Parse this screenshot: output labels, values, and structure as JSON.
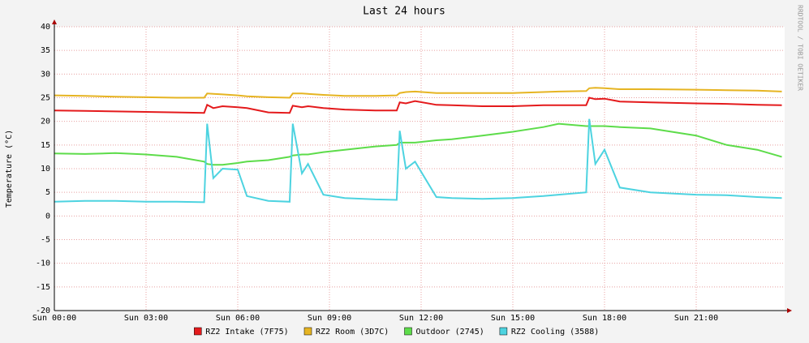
{
  "chart_data": {
    "type": "line",
    "title": "Last 24 hours",
    "y_label": "Temperature (°C)",
    "side_label": "RRDTOOL / TOBI OETIKER",
    "x": [
      0,
      1,
      2,
      3,
      4,
      4.9,
      5.0,
      5.2,
      5.5,
      6,
      6.3,
      7,
      7.7,
      7.8,
      8.1,
      8.3,
      8.8,
      9.5,
      10.5,
      11.2,
      11.3,
      11.5,
      11.8,
      12.5,
      13,
      14,
      15,
      16,
      16.5,
      17.4,
      17.5,
      17.7,
      18,
      18.5,
      19.5,
      21,
      22,
      23,
      23.8
    ],
    "xlim": [
      0,
      24
    ],
    "xticks": [
      {
        "value": 0,
        "label": "Sun 00:00"
      },
      {
        "value": 3,
        "label": "Sun 03:00"
      },
      {
        "value": 6,
        "label": "Sun 06:00"
      },
      {
        "value": 9,
        "label": "Sun 09:00"
      },
      {
        "value": 12,
        "label": "Sun 12:00"
      },
      {
        "value": 15,
        "label": "Sun 15:00"
      },
      {
        "value": 18,
        "label": "Sun 18:00"
      },
      {
        "value": 21,
        "label": "Sun 21:00"
      }
    ],
    "ylim": [
      -20,
      40
    ],
    "yticks": [
      40,
      35,
      30,
      25,
      20,
      15,
      10,
      5,
      0,
      -5,
      -10,
      -15,
      -20
    ],
    "grid": true,
    "legend": "bottom",
    "series": [
      {
        "name": "RZ2 Intake (7F75)",
        "color": "#e41a1c",
        "values": [
          22.3,
          22.2,
          22.1,
          22,
          21.9,
          21.8,
          23.5,
          22.8,
          23.2,
          23,
          22.8,
          21.9,
          21.8,
          23.3,
          23,
          23.2,
          22.8,
          22.5,
          22.3,
          22.3,
          24,
          23.8,
          24.3,
          23.5,
          23.4,
          23.2,
          23.2,
          23.4,
          23.4,
          23.4,
          25,
          24.7,
          24.8,
          24.2,
          24,
          23.8,
          23.7,
          23.5,
          23.4
        ]
      },
      {
        "name": "RZ2 Room (3D7C)",
        "color": "#e6b422",
        "values": [
          25.5,
          25.4,
          25.2,
          25.1,
          25,
          25,
          25.9,
          25.8,
          25.7,
          25.5,
          25.3,
          25.1,
          25,
          25.9,
          25.9,
          25.8,
          25.6,
          25.4,
          25.4,
          25.5,
          26,
          26.2,
          26.3,
          26,
          26,
          26,
          26,
          26.2,
          26.3,
          26.4,
          27,
          27.1,
          27,
          26.8,
          26.8,
          26.7,
          26.6,
          26.5,
          26.3
        ]
      },
      {
        "name": "Outdoor (2745)",
        "color": "#5ddc4a",
        "values": [
          13.2,
          13.1,
          13.3,
          13,
          12.5,
          11.5,
          11,
          10.8,
          10.8,
          11.2,
          11.5,
          11.8,
          12.5,
          12.8,
          13,
          13,
          13.5,
          14,
          14.7,
          15,
          15.5,
          15.5,
          15.5,
          16,
          16.2,
          17,
          17.8,
          18.8,
          19.5,
          19,
          19,
          19,
          19,
          18.8,
          18.5,
          17,
          15,
          14,
          12.5
        ]
      },
      {
        "name": "RZ2 Cooling (3588)",
        "color": "#4dd3e0",
        "values": [
          3,
          3.2,
          3.2,
          3,
          3,
          2.9,
          19.5,
          8,
          10,
          9.8,
          4.2,
          3.2,
          3,
          19.5,
          9,
          11,
          4.5,
          3.8,
          3.5,
          3.4,
          18,
          10,
          11.5,
          4,
          3.8,
          3.6,
          3.8,
          4.2,
          4.5,
          5,
          20.5,
          11,
          14,
          6,
          5,
          4.5,
          4.4,
          4,
          3.8
        ]
      }
    ]
  }
}
